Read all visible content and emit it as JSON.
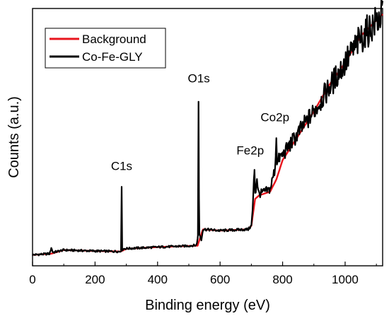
{
  "chart_data": {
    "type": "line",
    "xlabel": "Binding energy (eV)",
    "ylabel": "Counts (a.u.)",
    "xlim": [
      0,
      1120
    ],
    "x_ticks": [
      0,
      200,
      400,
      600,
      800,
      1000
    ],
    "x_tick_labels": [
      "0",
      "200",
      "400",
      "600",
      "800",
      "1000"
    ],
    "ylim": [
      0,
      100
    ],
    "y_ticks_shown": false,
    "grid": false,
    "legend": "top-left",
    "colors": {
      "background": "#e8141c",
      "main": "#000000"
    },
    "series": [
      {
        "name": "Background",
        "color": "#e8141c",
        "x": [
          0,
          60,
          100,
          200,
          282,
          300,
          400,
          528,
          545,
          600,
          690,
          700,
          712,
          725,
          760,
          780,
          800,
          850,
          900,
          950,
          1000,
          1050,
          1120
        ],
        "y": [
          1,
          1.5,
          3,
          2.6,
          2.4,
          3.5,
          4.2,
          4.8,
          11.5,
          11,
          11.5,
          13,
          24,
          25.5,
          27,
          32,
          40,
          50,
          60,
          71,
          80,
          91,
          100
        ]
      },
      {
        "name": "Co-Fe-GLY",
        "color": "#000000",
        "x": [
          0,
          55,
          60,
          65,
          100,
          200,
          280,
          284,
          285,
          286,
          290,
          300,
          400,
          500,
          525,
          530,
          531,
          532,
          533,
          540,
          545,
          550,
          600,
          690,
          700,
          705,
          708,
          710,
          712,
          715,
          718,
          722,
          725,
          760,
          775,
          779,
          780,
          781,
          783,
          790,
          800,
          850,
          900,
          950,
          1000,
          1050,
          1100,
          1120
        ],
        "y": [
          1,
          1.5,
          4,
          2,
          3,
          2.6,
          2.4,
          3,
          29,
          3,
          3.5,
          3.6,
          4.2,
          4.7,
          5,
          10,
          64,
          30,
          10,
          7,
          11.5,
          11.5,
          11,
          11.5,
          13,
          21,
          31,
          36,
          27,
          28,
          33,
          27,
          26,
          28,
          36,
          44,
          49,
          42,
          38,
          41,
          42,
          51,
          60,
          70,
          80,
          90,
          97,
          100
        ]
      }
    ],
    "annotations": [
      {
        "text": "C1s",
        "x": 285,
        "y": 33
      },
      {
        "text": "O1s",
        "x": 532,
        "y": 69
      },
      {
        "text": "Fe2p",
        "x": 710,
        "y": 40
      },
      {
        "text": "Co2p",
        "x": 780,
        "y": 53
      }
    ]
  }
}
